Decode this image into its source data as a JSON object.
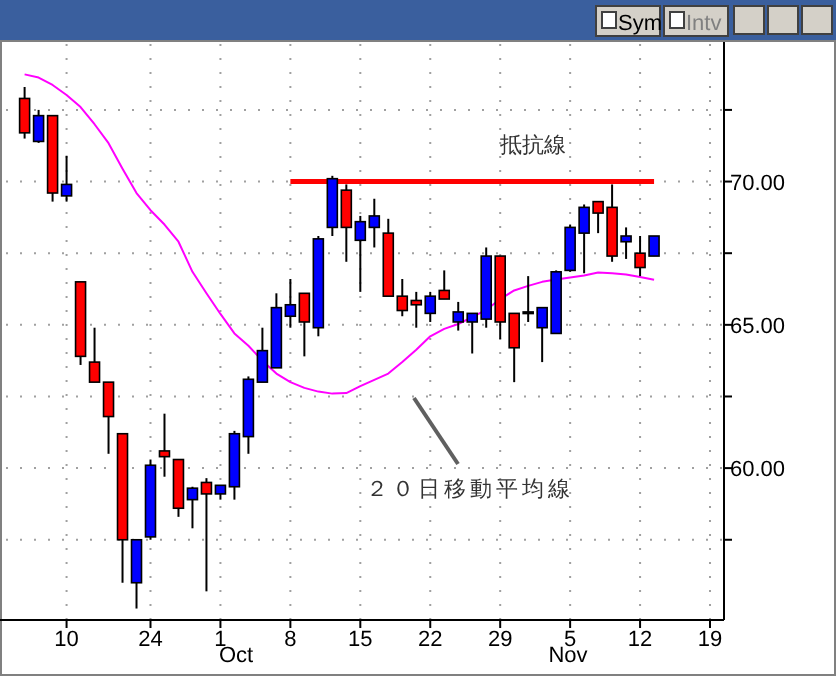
{
  "chart_data": {
    "type": "candlestick",
    "categories": [
      null,
      null,
      null,
      "10",
      null,
      null,
      null,
      null,
      null,
      "24",
      null,
      null,
      null,
      null,
      "1",
      null,
      null,
      null,
      null,
      "8",
      null,
      null,
      null,
      null,
      "15",
      null,
      null,
      null,
      null,
      "22",
      null,
      null,
      null,
      null,
      "29",
      null,
      null,
      null,
      null,
      "5",
      null,
      null,
      null,
      null,
      "12",
      null,
      null,
      null,
      null,
      "19"
    ],
    "ohlc": [
      [
        72.9,
        73.3,
        71.5,
        71.7
      ],
      [
        71.4,
        72.5,
        71.35,
        72.3
      ],
      [
        72.3,
        72.3,
        69.3,
        69.6
      ],
      [
        69.5,
        70.9,
        69.3,
        69.9
      ],
      [
        66.5,
        66.5,
        63.6,
        63.9
      ],
      [
        63.7,
        64.9,
        63.0,
        63.0
      ],
      [
        63.0,
        63.0,
        60.5,
        61.8
      ],
      [
        61.2,
        61.2,
        56.0,
        57.5
      ],
      [
        56.0,
        57.5,
        55.1,
        57.5
      ],
      [
        57.6,
        60.3,
        57.5,
        60.1
      ],
      [
        60.6,
        61.9,
        59.7,
        60.4
      ],
      [
        60.3,
        60.3,
        58.3,
        58.6
      ],
      [
        58.9,
        59.35,
        57.9,
        59.3
      ],
      [
        59.5,
        59.65,
        55.7,
        59.1
      ],
      [
        59.1,
        59.4,
        58.9,
        59.4
      ],
      [
        59.35,
        61.3,
        58.9,
        61.2
      ],
      [
        61.1,
        63.2,
        60.5,
        63.1
      ],
      [
        63.0,
        64.9,
        63.0,
        64.1
      ],
      [
        63.5,
        66.1,
        63.5,
        65.6
      ],
      [
        65.3,
        66.6,
        64.9,
        65.7
      ],
      [
        66.1,
        66.1,
        63.9,
        65.1
      ],
      [
        64.9,
        68.1,
        64.6,
        68.0
      ],
      [
        68.4,
        70.2,
        68.1,
        70.1
      ],
      [
        69.7,
        69.9,
        67.2,
        68.4
      ],
      [
        67.95,
        68.8,
        66.15,
        68.6
      ],
      [
        68.4,
        69.4,
        67.7,
        68.8
      ],
      [
        68.2,
        68.7,
        66.0,
        66.0
      ],
      [
        66.0,
        66.6,
        65.3,
        65.5
      ],
      [
        65.85,
        66.15,
        64.9,
        65.7
      ],
      [
        65.4,
        66.15,
        65.1,
        66.0
      ],
      [
        66.2,
        66.9,
        65.9,
        65.9
      ],
      [
        65.1,
        65.8,
        64.8,
        65.45
      ],
      [
        65.1,
        65.4,
        64.0,
        65.4
      ],
      [
        65.2,
        67.7,
        64.9,
        67.4
      ],
      [
        67.4,
        67.4,
        64.5,
        65.1
      ],
      [
        65.4,
        65.4,
        63.0,
        64.2
      ],
      [
        65.45,
        66.7,
        65.1,
        65.45
      ],
      [
        64.9,
        65.6,
        63.7,
        65.6
      ],
      [
        64.7,
        66.9,
        64.7,
        66.85
      ],
      [
        66.9,
        68.5,
        66.85,
        68.4
      ],
      [
        68.2,
        69.2,
        66.8,
        69.1
      ],
      [
        69.3,
        69.3,
        68.2,
        68.9
      ],
      [
        69.1,
        69.9,
        67.2,
        67.4
      ],
      [
        67.9,
        68.4,
        67.3,
        68.1
      ],
      [
        67.5,
        68.1,
        66.7,
        67.0
      ],
      [
        67.4,
        68.1,
        67.4,
        68.1
      ],
      null,
      null,
      null,
      null
    ],
    "colors": [
      "#ff0000",
      "#0000ff",
      "#ff0000",
      "#0000ff",
      "#ff0000",
      "#ff0000",
      "#ff0000",
      "#ff0000",
      "#0000ff",
      "#0000ff",
      "#ff0000",
      "#ff0000",
      "#0000ff",
      "#ff0000",
      "#0000ff",
      "#0000ff",
      "#0000ff",
      "#0000ff",
      "#0000ff",
      "#0000ff",
      "#ff0000",
      "#0000ff",
      "#0000ff",
      "#ff0000",
      "#0000ff",
      "#0000ff",
      "#ff0000",
      "#ff0000",
      "#ff0000",
      "#0000ff",
      "#ff0000",
      "#0000ff",
      "#0000ff",
      "#0000ff",
      "#ff0000",
      "#ff0000",
      "#0000ff",
      "#0000ff",
      "#0000ff",
      "#0000ff",
      "#0000ff",
      "#ff0000",
      "#ff0000",
      "#0000ff",
      "#ff0000",
      "#0000ff",
      null,
      null,
      null,
      null
    ],
    "series": [
      {
        "type": "line",
        "color": "#ff00ff",
        "values": [
          73.74,
          73.63,
          73.37,
          73.02,
          72.6,
          72.0,
          71.34,
          70.45,
          69.6,
          69.0,
          68.5,
          67.9,
          66.85,
          66.1,
          65.38,
          64.7,
          64.27,
          63.75,
          63.3,
          63.0,
          62.8,
          62.67,
          62.6,
          62.62,
          62.86,
          63.08,
          63.3,
          63.7,
          64.13,
          64.6,
          64.86,
          65.03,
          65.27,
          65.52,
          65.9,
          66.2,
          66.36,
          66.5,
          66.58,
          66.65,
          66.72,
          66.83,
          66.8,
          66.76,
          66.67,
          66.57,
          null,
          null,
          null,
          null
        ]
      },
      {
        "type": "line",
        "color": "#ff0000",
        "values": [
          null,
          null,
          null,
          null,
          null,
          null,
          null,
          null,
          null,
          null,
          null,
          null,
          null,
          null,
          null,
          null,
          null,
          null,
          null,
          70,
          70,
          70,
          70,
          70,
          70,
          70,
          70,
          70,
          70,
          70,
          70,
          70,
          70,
          70,
          70,
          70,
          70,
          70,
          70,
          70,
          70,
          70,
          70,
          70,
          70,
          70,
          null,
          null,
          null,
          null
        ]
      }
    ],
    "ylim": [
      54.7,
      74.8
    ],
    "yticks": [
      {
        "value": 57.5,
        "label": null
      },
      {
        "value": 60,
        "label": "60.00"
      },
      {
        "value": 62.5,
        "label": null
      },
      {
        "value": 65,
        "label": "65.00"
      },
      {
        "value": 67.5,
        "label": null
      },
      {
        "value": 70,
        "label": "70.00"
      },
      {
        "value": 72.5,
        "label": null
      }
    ],
    "grid": true,
    "annotations": [
      "抵抗線",
      "２０日移動平均線",
      "Oct",
      "Nov",
      "Sym",
      "Intv"
    ]
  }
}
